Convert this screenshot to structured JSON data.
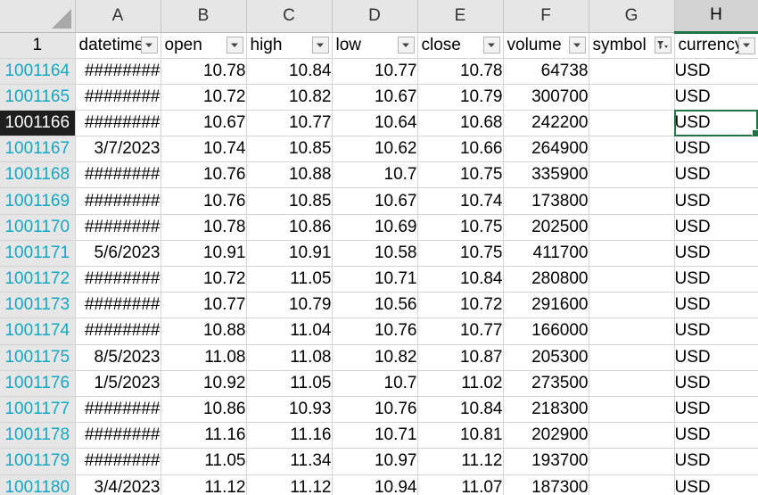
{
  "columns": [
    "A",
    "B",
    "C",
    "D",
    "E",
    "F",
    "G",
    "H"
  ],
  "header_row_number": "1",
  "fields": [
    {
      "label": "datetime",
      "filter": "dropdown"
    },
    {
      "label": "open",
      "filter": "dropdown"
    },
    {
      "label": "high",
      "filter": "dropdown"
    },
    {
      "label": "low",
      "filter": "dropdown"
    },
    {
      "label": "close",
      "filter": "dropdown"
    },
    {
      "label": "volume",
      "filter": "dropdown"
    },
    {
      "label": "symbol",
      "filter": "filtered"
    },
    {
      "label": "currency",
      "filter": "dropdown"
    }
  ],
  "rows": [
    {
      "n": "1001164",
      "datetime": "########",
      "open": "10.78",
      "high": "10.84",
      "low": "10.77",
      "close": "10.78",
      "volume": "64738",
      "symbol": "",
      "currency": "USD"
    },
    {
      "n": "1001165",
      "datetime": "########",
      "open": "10.72",
      "high": "10.82",
      "low": "10.67",
      "close": "10.79",
      "volume": "300700",
      "symbol": "",
      "currency": "USD"
    },
    {
      "n": "1001166",
      "datetime": "########",
      "open": "10.67",
      "high": "10.77",
      "low": "10.64",
      "close": "10.68",
      "volume": "242200",
      "symbol": "",
      "currency": "USD"
    },
    {
      "n": "1001167",
      "datetime": "3/7/2023",
      "open": "10.74",
      "high": "10.85",
      "low": "10.62",
      "close": "10.66",
      "volume": "264900",
      "symbol": "",
      "currency": "USD"
    },
    {
      "n": "1001168",
      "datetime": "########",
      "open": "10.76",
      "high": "10.88",
      "low": "10.7",
      "close": "10.75",
      "volume": "335900",
      "symbol": "",
      "currency": "USD"
    },
    {
      "n": "1001169",
      "datetime": "########",
      "open": "10.76",
      "high": "10.85",
      "low": "10.67",
      "close": "10.74",
      "volume": "173800",
      "symbol": "",
      "currency": "USD"
    },
    {
      "n": "1001170",
      "datetime": "########",
      "open": "10.78",
      "high": "10.86",
      "low": "10.69",
      "close": "10.75",
      "volume": "202500",
      "symbol": "",
      "currency": "USD"
    },
    {
      "n": "1001171",
      "datetime": "5/6/2023",
      "open": "10.91",
      "high": "10.91",
      "low": "10.58",
      "close": "10.75",
      "volume": "411700",
      "symbol": "",
      "currency": "USD"
    },
    {
      "n": "1001172",
      "datetime": "########",
      "open": "10.72",
      "high": "11.05",
      "low": "10.71",
      "close": "10.84",
      "volume": "280800",
      "symbol": "",
      "currency": "USD"
    },
    {
      "n": "1001173",
      "datetime": "########",
      "open": "10.77",
      "high": "10.79",
      "low": "10.56",
      "close": "10.72",
      "volume": "291600",
      "symbol": "",
      "currency": "USD"
    },
    {
      "n": "1001174",
      "datetime": "########",
      "open": "10.88",
      "high": "11.04",
      "low": "10.76",
      "close": "10.77",
      "volume": "166000",
      "symbol": "",
      "currency": "USD"
    },
    {
      "n": "1001175",
      "datetime": "8/5/2023",
      "open": "11.08",
      "high": "11.08",
      "low": "10.82",
      "close": "10.87",
      "volume": "205300",
      "symbol": "",
      "currency": "USD"
    },
    {
      "n": "1001176",
      "datetime": "1/5/2023",
      "open": "10.92",
      "high": "11.05",
      "low": "10.7",
      "close": "11.02",
      "volume": "273500",
      "symbol": "",
      "currency": "USD"
    },
    {
      "n": "1001177",
      "datetime": "########",
      "open": "10.86",
      "high": "10.93",
      "low": "10.76",
      "close": "10.84",
      "volume": "218300",
      "symbol": "",
      "currency": "USD"
    },
    {
      "n": "1001178",
      "datetime": "########",
      "open": "11.16",
      "high": "11.16",
      "low": "10.71",
      "close": "10.81",
      "volume": "202900",
      "symbol": "",
      "currency": "USD"
    },
    {
      "n": "1001179",
      "datetime": "########",
      "open": "11.05",
      "high": "11.34",
      "low": "10.97",
      "close": "11.12",
      "volume": "193700",
      "symbol": "",
      "currency": "USD"
    },
    {
      "n": "1001180",
      "datetime": "3/4/2023",
      "open": "11.12",
      "high": "11.12",
      "low": "10.94",
      "close": "11.07",
      "volume": "187300",
      "symbol": "",
      "currency": "USD"
    }
  ],
  "active_cell": {
    "column": "H",
    "row": "1001166"
  },
  "colors": {
    "accent": "#217346",
    "row_number": "#13a8c2",
    "header_bg": "#e6e6e6"
  }
}
